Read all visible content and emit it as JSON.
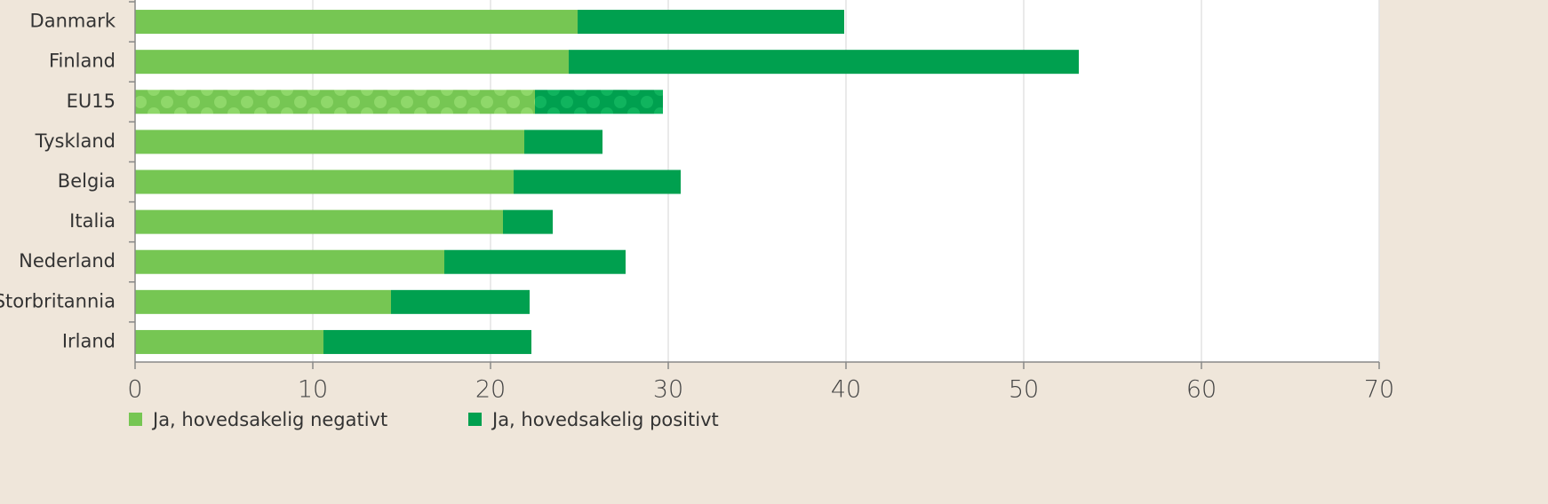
{
  "chart_data": {
    "type": "stacked_bar_horizontal",
    "categories": [
      "Danmark",
      "Finland",
      "EU15",
      "Tyskland",
      "Belgia",
      "Italia",
      "Nederland",
      "Storbritannia",
      "Irland"
    ],
    "series": [
      {
        "name": "Ja, hovedsakelig negativt",
        "color": "#76c653",
        "values": [
          24.9,
          24.4,
          22.5,
          21.9,
          21.3,
          20.7,
          17.4,
          14.4,
          10.6
        ]
      },
      {
        "name": "Ja, hovedsakelig positivt",
        "color": "#00a04f",
        "values": [
          15.0,
          28.7,
          7.2,
          4.4,
          9.4,
          2.8,
          10.2,
          7.8,
          11.7
        ]
      }
    ],
    "xlim": [
      0,
      70
    ],
    "xticks": [
      0,
      10,
      20,
      30,
      40,
      50,
      60,
      70
    ],
    "grid": true,
    "highlight": {
      "category_index": 2,
      "label_color": "#c0393b",
      "pattern": "dots"
    },
    "legend": "bottom-left"
  }
}
